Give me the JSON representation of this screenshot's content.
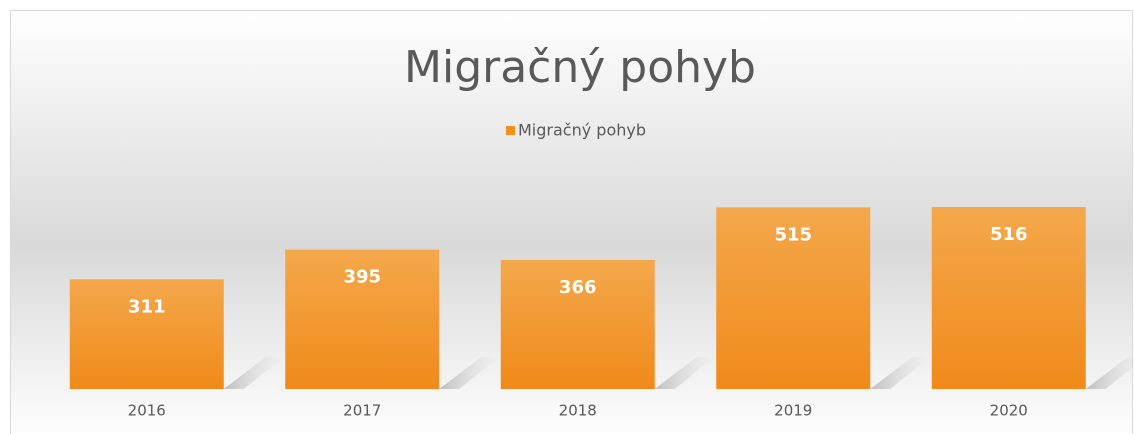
{
  "chart_data": {
    "type": "bar",
    "title": "Migračný pohyb",
    "categories": [
      "2016",
      "2017",
      "2018",
      "2019",
      "2020"
    ],
    "series": [
      {
        "name": "Migračný pohyb",
        "color": "#f0901f",
        "values": [
          311,
          395,
          366,
          515,
          516
        ]
      }
    ],
    "legend": "top"
  }
}
